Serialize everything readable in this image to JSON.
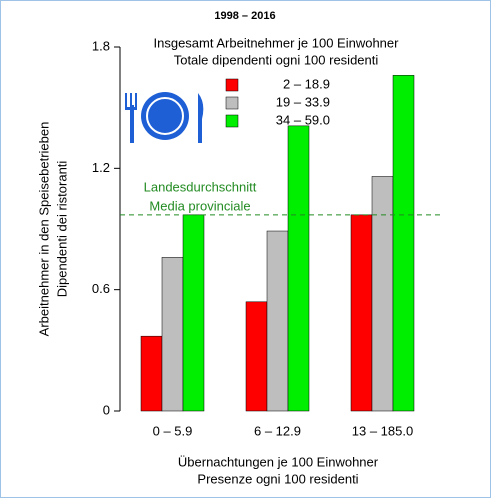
{
  "chart_data": {
    "type": "bar",
    "title": "1998 – 2016",
    "subtitle": [
      "Insgesamt Arbeitnehmer je 100 Einwohner",
      "Totale dipendenti ogni 100 residenti"
    ],
    "y_label": [
      "Arbeitnehmer in den Speisebetrieben",
      "Dipendenti dei ristoranti"
    ],
    "x_label": [
      "Übernachtungen je 100 Einwohner",
      "Presenze ogni 100 residenti"
    ],
    "categories": [
      "0 –  5.9",
      "6 – 12.9",
      "13 – 185.0"
    ],
    "series": [
      {
        "name": "2 – 18.9",
        "color": "#ff0000",
        "values": [
          0.37,
          0.54,
          0.97
        ]
      },
      {
        "name": "19 – 33.9",
        "color": "#bebebe",
        "values": [
          0.76,
          0.89,
          1.16
        ]
      },
      {
        "name": "34 – 59.0",
        "color": "#00ee00",
        "values": [
          0.97,
          1.41,
          1.66
        ]
      }
    ],
    "reference_line": {
      "value": 0.97,
      "label": [
        "Landesdurchschnitt",
        "Media provinciale"
      ],
      "color": "#228b22"
    },
    "ylim": [
      0,
      1.8
    ],
    "yticks": [
      0,
      0.6,
      1.2,
      1.8
    ],
    "grid": false
  }
}
